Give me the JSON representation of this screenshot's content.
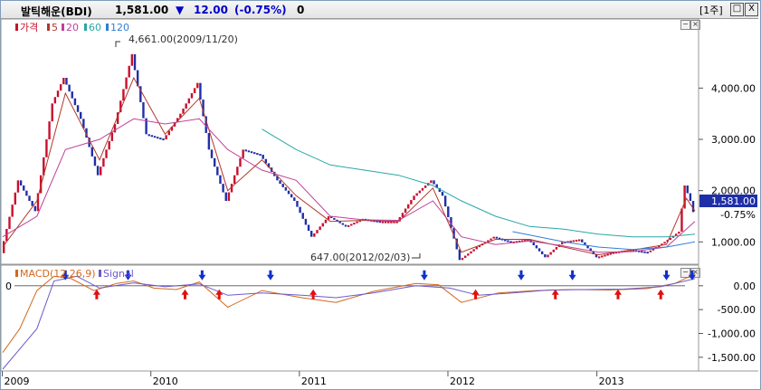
{
  "window": {
    "name": "발틱해운(BDI)",
    "price": "1,581.00",
    "change_arrow": "▼",
    "change": "12.00",
    "change_pct": "(-0.75%)",
    "volume": "0",
    "period_button": "[1주]",
    "btn_restore": "□",
    "btn_close": "X"
  },
  "legend": {
    "price": "가격",
    "ma5": "5",
    "ma20": "20",
    "ma60": "60",
    "ma120": "120"
  },
  "macd_legend": {
    "macd": "MACD(12,26,9)",
    "signal": "Signal"
  },
  "annotations": {
    "high": "4,661.00(2009/11/20)",
    "low": "647.00(2012/02/03)"
  },
  "price_badge": {
    "price": "1,581.00",
    "pct": "-0.75%"
  },
  "colors": {
    "up": "#c8102e",
    "down": "#1f2fa8",
    "ma5": "#b3372b",
    "ma20": "#c0409a",
    "ma60": "#2aa6a6",
    "ma120": "#2e7fd8",
    "macd": "#d2691e",
    "signal": "#6a5acd"
  },
  "chart_data": [
    {
      "type": "line",
      "name": "price",
      "x_start": "2009-01-02",
      "x_end": "2013-08-30",
      "x_ticks": [
        "2009",
        "2010",
        "2011",
        "2012",
        "2013"
      ],
      "y_ticks": [
        "1,000.00",
        "2,000.00",
        "3,000.00",
        "4,000.00"
      ],
      "y_tick_values": [
        1000,
        2000,
        3000,
        4000
      ],
      "ylim": [
        600,
        4800
      ],
      "series": [
        {
          "name": "가격",
          "x": [
            "2009-01-02",
            "2009-02-13",
            "2009-03-27",
            "2009-05-08",
            "2009-06-05",
            "2009-07-17",
            "2009-08-28",
            "2009-10-09",
            "2009-11-20",
            "2009-12-25",
            "2010-02-05",
            "2010-03-19",
            "2010-04-30",
            "2010-05-28",
            "2010-07-09",
            "2010-08-20",
            "2010-10-01",
            "2010-11-12",
            "2010-12-24",
            "2011-02-04",
            "2011-03-18",
            "2011-04-29",
            "2011-06-10",
            "2011-07-22",
            "2011-09-02",
            "2011-10-14",
            "2011-11-25",
            "2011-12-23",
            "2012-02-03",
            "2012-03-16",
            "2012-04-27",
            "2012-06-08",
            "2012-07-20",
            "2012-08-31",
            "2012-10-12",
            "2012-11-23",
            "2013-01-04",
            "2013-02-15",
            "2013-03-29",
            "2013-05-10",
            "2013-06-21",
            "2013-07-26",
            "2013-08-09",
            "2013-08-23",
            "2013-08-30"
          ],
          "y": [
            780,
            2200,
            1600,
            3700,
            4200,
            3400,
            2300,
            3300,
            4661,
            3100,
            3000,
            3500,
            4100,
            2800,
            1800,
            2800,
            2700,
            2200,
            1800,
            1100,
            1500,
            1300,
            1450,
            1400,
            1400,
            1900,
            2200,
            1900,
            647,
            900,
            1100,
            1000,
            1050,
            700,
            1000,
            1050,
            700,
            800,
            850,
            800,
            1000,
            1200,
            2100,
            1800,
            1581
          ]
        },
        {
          "name": "5",
          "x": [
            "2009-01-02",
            "2009-03-27",
            "2009-06-05",
            "2009-08-28",
            "2009-11-20",
            "2010-02-05",
            "2010-04-30",
            "2010-07-09",
            "2010-10-01",
            "2010-12-24",
            "2011-03-18",
            "2011-06-10",
            "2011-09-02",
            "2011-11-25",
            "2012-02-03",
            "2012-04-27",
            "2012-07-20",
            "2012-10-12",
            "2013-01-04",
            "2013-03-29",
            "2013-06-21",
            "2013-08-09",
            "2013-08-30"
          ],
          "y": [
            900,
            1800,
            3900,
            2600,
            4200,
            3100,
            3800,
            2000,
            2600,
            1900,
            1400,
            1420,
            1400,
            2050,
            800,
            1050,
            1050,
            900,
            750,
            840,
            950,
            1850,
            1600
          ]
        },
        {
          "name": "20",
          "x": [
            "2009-01-02",
            "2009-03-27",
            "2009-06-05",
            "2009-08-28",
            "2009-11-20",
            "2010-02-05",
            "2010-04-30",
            "2010-07-09",
            "2010-10-01",
            "2010-12-24",
            "2011-03-18",
            "2011-06-10",
            "2011-09-02",
            "2011-11-25",
            "2012-02-03",
            "2012-04-27",
            "2012-07-20",
            "2012-10-12",
            "2013-01-04",
            "2013-03-29",
            "2013-06-21",
            "2013-08-30"
          ],
          "y": [
            1100,
            1500,
            2800,
            3000,
            3400,
            3300,
            3400,
            2800,
            2400,
            2200,
            1500,
            1430,
            1420,
            1800,
            1100,
            950,
            1020,
            920,
            800,
            810,
            900,
            1400
          ]
        },
        {
          "name": "60",
          "x": [
            "2010-10-01",
            "2010-12-24",
            "2011-03-18",
            "2011-06-10",
            "2011-09-02",
            "2011-11-25",
            "2012-02-03",
            "2012-04-27",
            "2012-07-20",
            "2012-10-12",
            "2013-01-04",
            "2013-03-29",
            "2013-06-21",
            "2013-08-30"
          ],
          "y": [
            3200,
            2800,
            2500,
            2400,
            2300,
            2100,
            1800,
            1500,
            1300,
            1250,
            1150,
            1100,
            1100,
            1150
          ]
        },
        {
          "name": "120",
          "x": [
            "2012-06-08",
            "2012-10-12",
            "2013-01-04",
            "2013-03-29",
            "2013-06-21",
            "2013-08-30"
          ],
          "y": [
            1200,
            1000,
            900,
            850,
            900,
            1000
          ]
        }
      ]
    },
    {
      "type": "line",
      "name": "macd",
      "x_start": "2009-01-02",
      "x_end": "2013-08-30",
      "y_ticks": [
        "0.00",
        "-500.00",
        "-1,000.00",
        "-1,500.00"
      ],
      "y_tick_values": [
        0,
        -500,
        -1000,
        -1500
      ],
      "zero_label": "0",
      "ylim": [
        -1750,
        300
      ],
      "series": [
        {
          "name": "MACD(12,26,9)",
          "x": [
            "2009-01-02",
            "2009-02-13",
            "2009-03-27",
            "2009-05-08",
            "2009-06-19",
            "2009-08-14",
            "2009-10-09",
            "2009-11-20",
            "2010-01-08",
            "2010-03-05",
            "2010-04-30",
            "2010-07-09",
            "2010-10-01",
            "2011-01-07",
            "2011-04-01",
            "2011-07-01",
            "2011-10-14",
            "2011-12-09",
            "2012-02-03",
            "2012-05-04",
            "2012-08-03",
            "2012-11-02",
            "2013-02-01",
            "2013-05-03",
            "2013-07-12",
            "2013-08-30"
          ],
          "y": [
            -1400,
            -900,
            -100,
            200,
            150,
            -100,
            50,
            100,
            -50,
            -80,
            80,
            -450,
            -100,
            -250,
            -350,
            -120,
            50,
            20,
            -350,
            -150,
            -100,
            -80,
            -90,
            -60,
            50,
            250
          ]
        },
        {
          "name": "Signal",
          "x": [
            "2009-01-02",
            "2009-03-27",
            "2009-05-08",
            "2009-07-03",
            "2009-08-28",
            "2009-11-20",
            "2010-02-05",
            "2010-04-30",
            "2010-07-09",
            "2010-10-01",
            "2011-01-07",
            "2011-04-01",
            "2011-07-01",
            "2011-10-14",
            "2012-01-06",
            "2012-03-16",
            "2012-06-08",
            "2012-09-07",
            "2012-12-07",
            "2013-03-08",
            "2013-06-07",
            "2013-08-30"
          ],
          "y": [
            -1750,
            -900,
            100,
            200,
            -50,
            60,
            -20,
            40,
            -200,
            -150,
            -200,
            -250,
            -150,
            0,
            -50,
            -200,
            -150,
            -90,
            -80,
            -70,
            -20,
            150
          ]
        }
      ],
      "buy_signals": [
        "2009-08-21",
        "2010-03-26",
        "2010-06-18",
        "2011-02-04",
        "2012-03-09",
        "2012-09-21",
        "2013-02-22",
        "2013-06-07"
      ],
      "sell_signals": [
        "2009-06-05",
        "2009-11-06",
        "2010-05-07",
        "2010-10-22",
        "2011-11-04",
        "2012-06-29",
        "2012-11-02",
        "2013-06-21",
        "2013-08-23"
      ]
    }
  ]
}
